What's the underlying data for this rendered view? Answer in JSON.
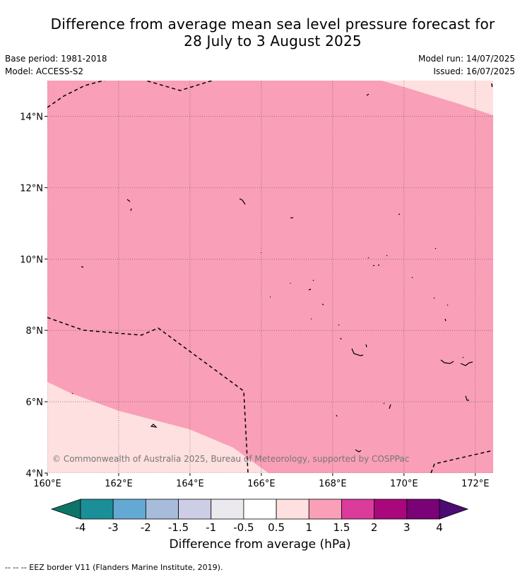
{
  "title_line1": "Difference from average mean sea level pressure forecast for",
  "title_line2": "28 July to 3 August 2025",
  "base_period": "Base period: 1981-2018",
  "model": "Model: ACCESS-S2",
  "model_run": "Model run: 14/07/2025",
  "issued": "Issued: 16/07/2025",
  "copyright": "© Commonwealth of Australia 2025, Bureau of Meteorology, supported by COSPPac",
  "colorbar_label": "Difference from average (hPa)",
  "footnote": "--  --  -- EEZ border V11 (Flanders Marine Institute, 2019).",
  "map": {
    "lon_range": [
      160,
      172.5
    ],
    "lat_range": [
      4,
      15
    ],
    "lon_ticks": [
      "160°E",
      "162°E",
      "164°E",
      "166°E",
      "168°E",
      "170°E",
      "172°E"
    ],
    "lat_ticks": [
      "4°N",
      "6°N",
      "8°N",
      "10°N",
      "12°N",
      "14°N"
    ],
    "field_color": "#f99fb7",
    "low_color": "#fde0df"
  },
  "colorbar": {
    "under_color": "#0f7468",
    "over_color": "#4d0b74",
    "colors": [
      "#1b8f98",
      "#64a9d4",
      "#a7bbdb",
      "#cdcde6",
      "#ebe9ee",
      "#ffffff",
      "#fde0df",
      "#f99fb7",
      "#db3b9b",
      "#a9077c",
      "#7a0176"
    ],
    "ticks": [
      "-4",
      "-3",
      "-2",
      "-1.5",
      "-1",
      "-0.5",
      "0.5",
      "1",
      "1.5",
      "2",
      "3",
      "4"
    ]
  }
}
